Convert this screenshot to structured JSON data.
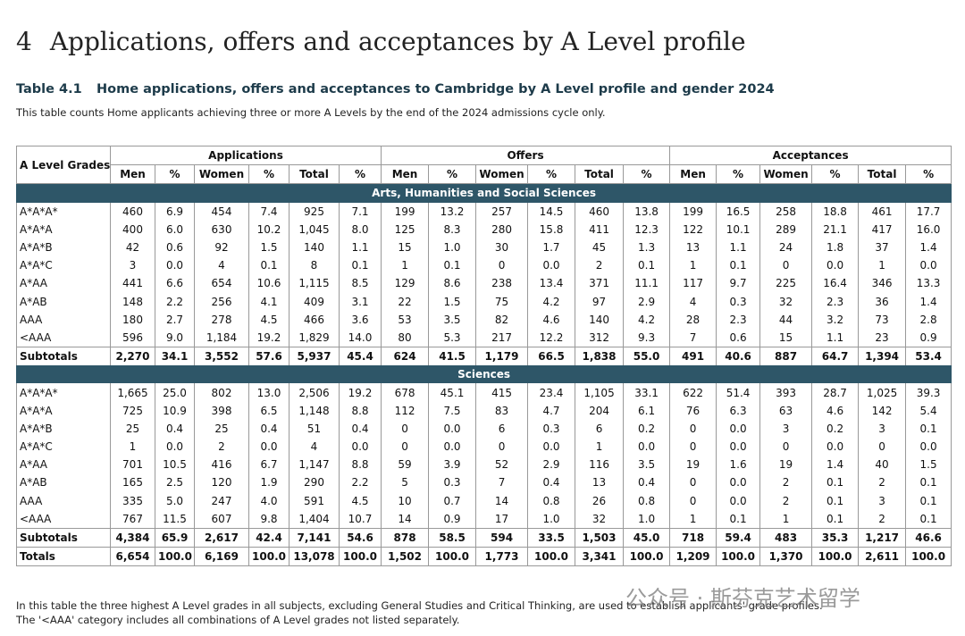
{
  "heading": {
    "number": "4",
    "title": "Applications, offers and acceptances by A Level profile"
  },
  "table_label": "Table 4.1",
  "table_title": "Home applications, offers and acceptances to Cambridge by A Level profile and gender 2024",
  "subtitle": "This table counts Home applicants achieving three or more A Levels by the end of the 2024 admissions cycle only.",
  "table": {
    "row_header": "A Level Grades",
    "groups": [
      {
        "name": "Applications",
        "columns": [
          "Men",
          "%",
          "Women",
          "%",
          "Total",
          "%"
        ]
      },
      {
        "name": "Offers",
        "columns": [
          "Men",
          "%",
          "Women",
          "%",
          "Total",
          "%"
        ]
      },
      {
        "name": "Acceptances",
        "columns": [
          "Men",
          "%",
          "Women",
          "%",
          "Total",
          "%"
        ]
      }
    ],
    "sections": [
      {
        "name": "Arts, Humanities and Social Sciences",
        "rows": [
          [
            "A*A*A*",
            "460",
            "6.9",
            "454",
            "7.4",
            "925",
            "7.1",
            "199",
            "13.2",
            "257",
            "14.5",
            "460",
            "13.8",
            "199",
            "16.5",
            "258",
            "18.8",
            "461",
            "17.7"
          ],
          [
            "A*A*A",
            "400",
            "6.0",
            "630",
            "10.2",
            "1,045",
            "8.0",
            "125",
            "8.3",
            "280",
            "15.8",
            "411",
            "12.3",
            "122",
            "10.1",
            "289",
            "21.1",
            "417",
            "16.0"
          ],
          [
            "A*A*B",
            "42",
            "0.6",
            "92",
            "1.5",
            "140",
            "1.1",
            "15",
            "1.0",
            "30",
            "1.7",
            "45",
            "1.3",
            "13",
            "1.1",
            "24",
            "1.8",
            "37",
            "1.4"
          ],
          [
            "A*A*C",
            "3",
            "0.0",
            "4",
            "0.1",
            "8",
            "0.1",
            "1",
            "0.1",
            "0",
            "0.0",
            "2",
            "0.1",
            "1",
            "0.1",
            "0",
            "0.0",
            "1",
            "0.0"
          ],
          [
            "A*AA",
            "441",
            "6.6",
            "654",
            "10.6",
            "1,115",
            "8.5",
            "129",
            "8.6",
            "238",
            "13.4",
            "371",
            "11.1",
            "117",
            "9.7",
            "225",
            "16.4",
            "346",
            "13.3"
          ],
          [
            "A*AB",
            "148",
            "2.2",
            "256",
            "4.1",
            "409",
            "3.1",
            "22",
            "1.5",
            "75",
            "4.2",
            "97",
            "2.9",
            "4",
            "0.3",
            "32",
            "2.3",
            "36",
            "1.4"
          ],
          [
            "AAA",
            "180",
            "2.7",
            "278",
            "4.5",
            "466",
            "3.6",
            "53",
            "3.5",
            "82",
            "4.6",
            "140",
            "4.2",
            "28",
            "2.3",
            "44",
            "3.2",
            "73",
            "2.8"
          ],
          [
            "<AAA",
            "596",
            "9.0",
            "1,184",
            "19.2",
            "1,829",
            "14.0",
            "80",
            "5.3",
            "217",
            "12.2",
            "312",
            "9.3",
            "7",
            "0.6",
            "15",
            "1.1",
            "23",
            "0.9"
          ]
        ],
        "subtotal": [
          "Subtotals",
          "2,270",
          "34.1",
          "3,552",
          "57.6",
          "5,937",
          "45.4",
          "624",
          "41.5",
          "1,179",
          "66.5",
          "1,838",
          "55.0",
          "491",
          "40.6",
          "887",
          "64.7",
          "1,394",
          "53.4"
        ]
      },
      {
        "name": "Sciences",
        "rows": [
          [
            "A*A*A*",
            "1,665",
            "25.0",
            "802",
            "13.0",
            "2,506",
            "19.2",
            "678",
            "45.1",
            "415",
            "23.4",
            "1,105",
            "33.1",
            "622",
            "51.4",
            "393",
            "28.7",
            "1,025",
            "39.3"
          ],
          [
            "A*A*A",
            "725",
            "10.9",
            "398",
            "6.5",
            "1,148",
            "8.8",
            "112",
            "7.5",
            "83",
            "4.7",
            "204",
            "6.1",
            "76",
            "6.3",
            "63",
            "4.6",
            "142",
            "5.4"
          ],
          [
            "A*A*B",
            "25",
            "0.4",
            "25",
            "0.4",
            "51",
            "0.4",
            "0",
            "0.0",
            "6",
            "0.3",
            "6",
            "0.2",
            "0",
            "0.0",
            "3",
            "0.2",
            "3",
            "0.1"
          ],
          [
            "A*A*C",
            "1",
            "0.0",
            "2",
            "0.0",
            "4",
            "0.0",
            "0",
            "0.0",
            "0",
            "0.0",
            "1",
            "0.0",
            "0",
            "0.0",
            "0",
            "0.0",
            "0",
            "0.0"
          ],
          [
            "A*AA",
            "701",
            "10.5",
            "416",
            "6.7",
            "1,147",
            "8.8",
            "59",
            "3.9",
            "52",
            "2.9",
            "116",
            "3.5",
            "19",
            "1.6",
            "19",
            "1.4",
            "40",
            "1.5"
          ],
          [
            "A*AB",
            "165",
            "2.5",
            "120",
            "1.9",
            "290",
            "2.2",
            "5",
            "0.3",
            "7",
            "0.4",
            "13",
            "0.4",
            "0",
            "0.0",
            "2",
            "0.1",
            "2",
            "0.1"
          ],
          [
            "AAA",
            "335",
            "5.0",
            "247",
            "4.0",
            "591",
            "4.5",
            "10",
            "0.7",
            "14",
            "0.8",
            "26",
            "0.8",
            "0",
            "0.0",
            "2",
            "0.1",
            "3",
            "0.1"
          ],
          [
            "<AAA",
            "767",
            "11.5",
            "607",
            "9.8",
            "1,404",
            "10.7",
            "14",
            "0.9",
            "17",
            "1.0",
            "32",
            "1.0",
            "1",
            "0.1",
            "1",
            "0.1",
            "2",
            "0.1"
          ]
        ],
        "subtotal": [
          "Subtotals",
          "4,384",
          "65.9",
          "2,617",
          "42.4",
          "7,141",
          "54.6",
          "878",
          "58.5",
          "594",
          "33.5",
          "1,503",
          "45.0",
          "718",
          "59.4",
          "483",
          "35.3",
          "1,217",
          "46.6"
        ]
      }
    ],
    "totals": [
      "Totals",
      "6,654",
      "100.0",
      "6,169",
      "100.0",
      "13,078",
      "100.0",
      "1,502",
      "100.0",
      "1,773",
      "100.0",
      "3,341",
      "100.0",
      "1,209",
      "100.0",
      "1,370",
      "100.0",
      "2,611",
      "100.0"
    ]
  },
  "footnotes": [
    "In this table the three highest A Level grades in all subjects, excluding General Studies and Critical Thinking, are used to establish applicants' grade profiles.",
    "The '<AAA' category includes all combinations of A Level grades not listed separately."
  ],
  "watermark": "公众号 · 斯芬克艺术留学"
}
